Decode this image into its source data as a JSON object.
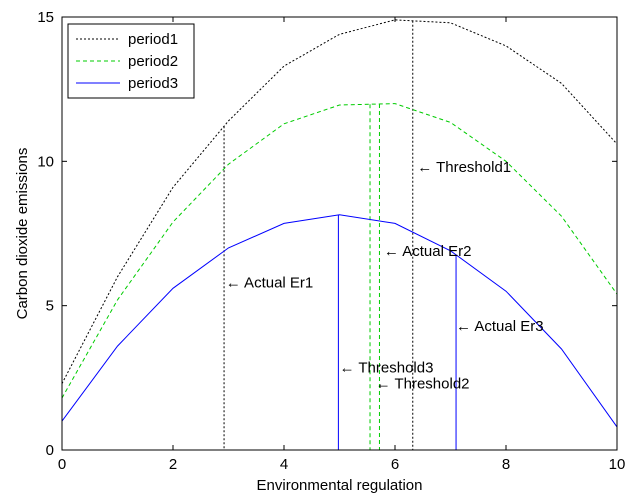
{
  "chart_data": {
    "type": "line",
    "xlabel": "Environmental regulation",
    "ylabel": "Carbon dioxide emissions",
    "xlim": [
      0,
      10
    ],
    "ylim": [
      0,
      15
    ],
    "xticks": [
      0,
      2,
      4,
      6,
      8,
      10
    ],
    "yticks": [
      0,
      5,
      10,
      15
    ],
    "grid": false,
    "legend_position": "top-left",
    "x": [
      0,
      1,
      2,
      3,
      4,
      5,
      6,
      7,
      8,
      9,
      10
    ],
    "series": [
      {
        "name": "period1",
        "color": "#000000",
        "dash": "2,2",
        "values": [
          2.3,
          6.0,
          9.1,
          11.4,
          13.3,
          14.4,
          14.9,
          14.8,
          14.0,
          12.7,
          10.6
        ]
      },
      {
        "name": "period2",
        "color": "#00cc00",
        "dash": "4,3",
        "values": [
          1.8,
          5.2,
          7.9,
          9.9,
          11.3,
          11.95,
          12.0,
          11.35,
          10.0,
          8.1,
          5.4
        ]
      },
      {
        "name": "period3",
        "color": "#0000ff",
        "dash": "",
        "values": [
          1.0,
          3.6,
          5.6,
          7.0,
          7.85,
          8.15,
          7.85,
          6.9,
          5.5,
          3.5,
          0.8
        ]
      }
    ],
    "reference_lines": [
      {
        "x": 2.92,
        "series": 0,
        "color": "#000000",
        "dash": "2,2"
      },
      {
        "x": 6.32,
        "series": 0,
        "color": "#000000",
        "dash": "2,2"
      },
      {
        "x": 5.55,
        "series": 1,
        "color": "#00cc00",
        "dash": "4,3"
      },
      {
        "x": 5.72,
        "series": 1,
        "color": "#00cc00",
        "dash": "4,3"
      },
      {
        "x": 4.98,
        "series": 2,
        "color": "#0000ff",
        "dash": ""
      },
      {
        "x": 7.1,
        "series": 2,
        "color": "#0000ff",
        "dash": ""
      }
    ],
    "annotations": [
      {
        "text": "← Threshold1",
        "x": 6.4,
        "y": 9.8
      },
      {
        "text": "← Actual Er1",
        "x": 2.95,
        "y": 5.8
      },
      {
        "text": "← Actual Er2",
        "x": 5.8,
        "y": 6.9
      },
      {
        "text": "← Actual Er3",
        "x": 7.1,
        "y": 4.3
      },
      {
        "text": "← Threshold3",
        "x": 5.0,
        "y": 2.85
      },
      {
        "text": "← Threshold2",
        "x": 5.65,
        "y": 2.3
      }
    ]
  }
}
